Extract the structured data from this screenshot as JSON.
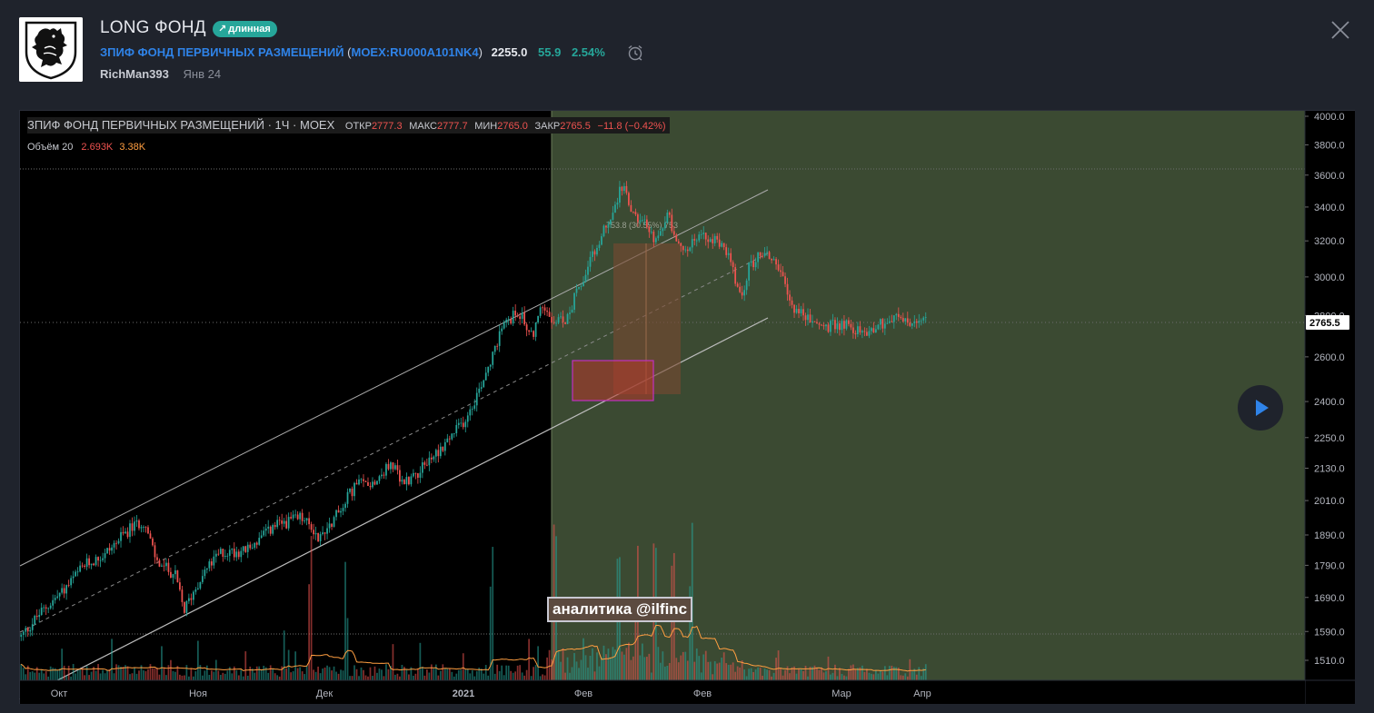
{
  "header": {
    "title": "LONG ФОНД",
    "badge": "длинная",
    "symbol_name": "ЗПИФ ФОНД ПЕРВИЧНЫХ РАЗМЕЩЕНИЙ",
    "symbol_code": "MOEX:RU000A101NK4",
    "price": "2255.0",
    "change": "55.9",
    "change_pct": "2.54%",
    "author": "RichMan393",
    "date": "Янв 24"
  },
  "legend": {
    "name": "ЗПИФ ФОНД ПЕРВИЧНЫХ РАЗМЕЩЕНИЙ · 1Ч · MOEX",
    "open_label": "ОТКР",
    "open": "2777.3",
    "high_label": "МАКС",
    "high": "2777.7",
    "low_label": "МИН",
    "low": "2765.0",
    "close_label": "ЗАКР",
    "close": "2765.5",
    "change": "−11.8 (−0.42%)",
    "volume_label": "Объём 20",
    "volume": "2.693K",
    "volume_ma": "3.38K"
  },
  "watermark": "аналитика @ilfinc",
  "range_label": "753.8 (30.55%) 753",
  "colors": {
    "up": "#26a69a",
    "down": "#ef5350",
    "accent": "#2f83e8",
    "zone": "#3b4a32"
  },
  "chart_data": {
    "type": "candlestick",
    "symbol": "ЗПИФ ФОНД ПЕРВИЧНЫХ РАЗМЕЩЕНИЙ",
    "interval": "1Ч",
    "y_scale": "log",
    "ylim": [
      1450,
      4100
    ],
    "y_ticks": [
      "4000.0",
      "3800.0",
      "3600.0",
      "3400.0",
      "3200.0",
      "3000.0",
      "2800.0",
      "2600.0",
      "2400.0",
      "2250.0",
      "2130.0",
      "2010.0",
      "1890.0",
      "1790.0",
      "1690.0",
      "1590.0",
      "1510.0"
    ],
    "x_labels": [
      "Окт",
      "Ноя",
      "Дек",
      "2021",
      "Фев",
      "Фев",
      "Мар",
      "Апр"
    ],
    "last_price": "2765.5",
    "price_path": [
      [
        0,
        1575
      ],
      [
        0.02,
        1640
      ],
      [
        0.05,
        1720
      ],
      [
        0.07,
        1790
      ],
      [
        0.09,
        1820
      ],
      [
        0.12,
        1910
      ],
      [
        0.135,
        1940
      ],
      [
        0.15,
        1800
      ],
      [
        0.17,
        1760
      ],
      [
        0.18,
        1650
      ],
      [
        0.2,
        1760
      ],
      [
        0.22,
        1830
      ],
      [
        0.25,
        1840
      ],
      [
        0.28,
        1920
      ],
      [
        0.31,
        1950
      ],
      [
        0.33,
        1880
      ],
      [
        0.355,
        1990
      ],
      [
        0.37,
        2070
      ],
      [
        0.39,
        2080
      ],
      [
        0.41,
        2150
      ],
      [
        0.42,
        2070
      ],
      [
        0.44,
        2120
      ],
      [
        0.47,
        2230
      ],
      [
        0.49,
        2320
      ],
      [
        0.505,
        2440
      ],
      [
        0.52,
        2600
      ],
      [
        0.535,
        2760
      ],
      [
        0.55,
        2820
      ],
      [
        0.565,
        2700
      ],
      [
        0.575,
        2840
      ],
      [
        0.585,
        2800
      ],
      [
        0.6,
        2760
      ],
      [
        0.62,
        2980
      ],
      [
        0.64,
        3200
      ],
      [
        0.655,
        3400
      ],
      [
        0.665,
        3550
      ],
      [
        0.675,
        3350
      ],
      [
        0.69,
        3300
      ],
      [
        0.7,
        3200
      ],
      [
        0.715,
        3350
      ],
      [
        0.73,
        3150
      ],
      [
        0.75,
        3230
      ],
      [
        0.765,
        3210
      ],
      [
        0.78,
        3150
      ],
      [
        0.795,
        2880
      ],
      [
        0.805,
        3060
      ],
      [
        0.82,
        3140
      ],
      [
        0.835,
        3080
      ],
      [
        0.85,
        2860
      ],
      [
        0.87,
        2780
      ],
      [
        0.89,
        2740
      ],
      [
        0.91,
        2760
      ],
      [
        0.93,
        2710
      ],
      [
        0.95,
        2760
      ],
      [
        0.97,
        2790
      ],
      [
        0.985,
        2750
      ],
      [
        1.0,
        2765
      ]
    ],
    "volume_spikes": [
      0.32,
      0.36,
      0.52,
      0.59,
      0.66,
      0.68,
      0.7,
      0.72,
      0.74
    ]
  }
}
